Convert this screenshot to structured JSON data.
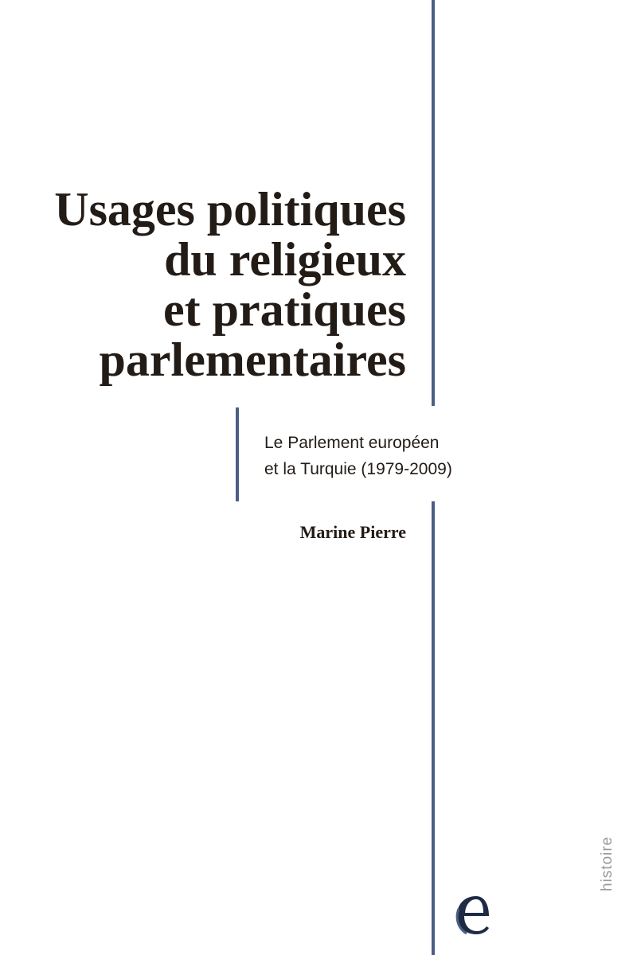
{
  "cover": {
    "title": [
      "Usages politiques",
      "du religieux",
      "et pratiques",
      "parlementaires"
    ],
    "subtitle": [
      "Le Parlement européen",
      "et la Turquie (1979-2009)"
    ],
    "author": "Marine Pierre",
    "collection": "histoire"
  }
}
